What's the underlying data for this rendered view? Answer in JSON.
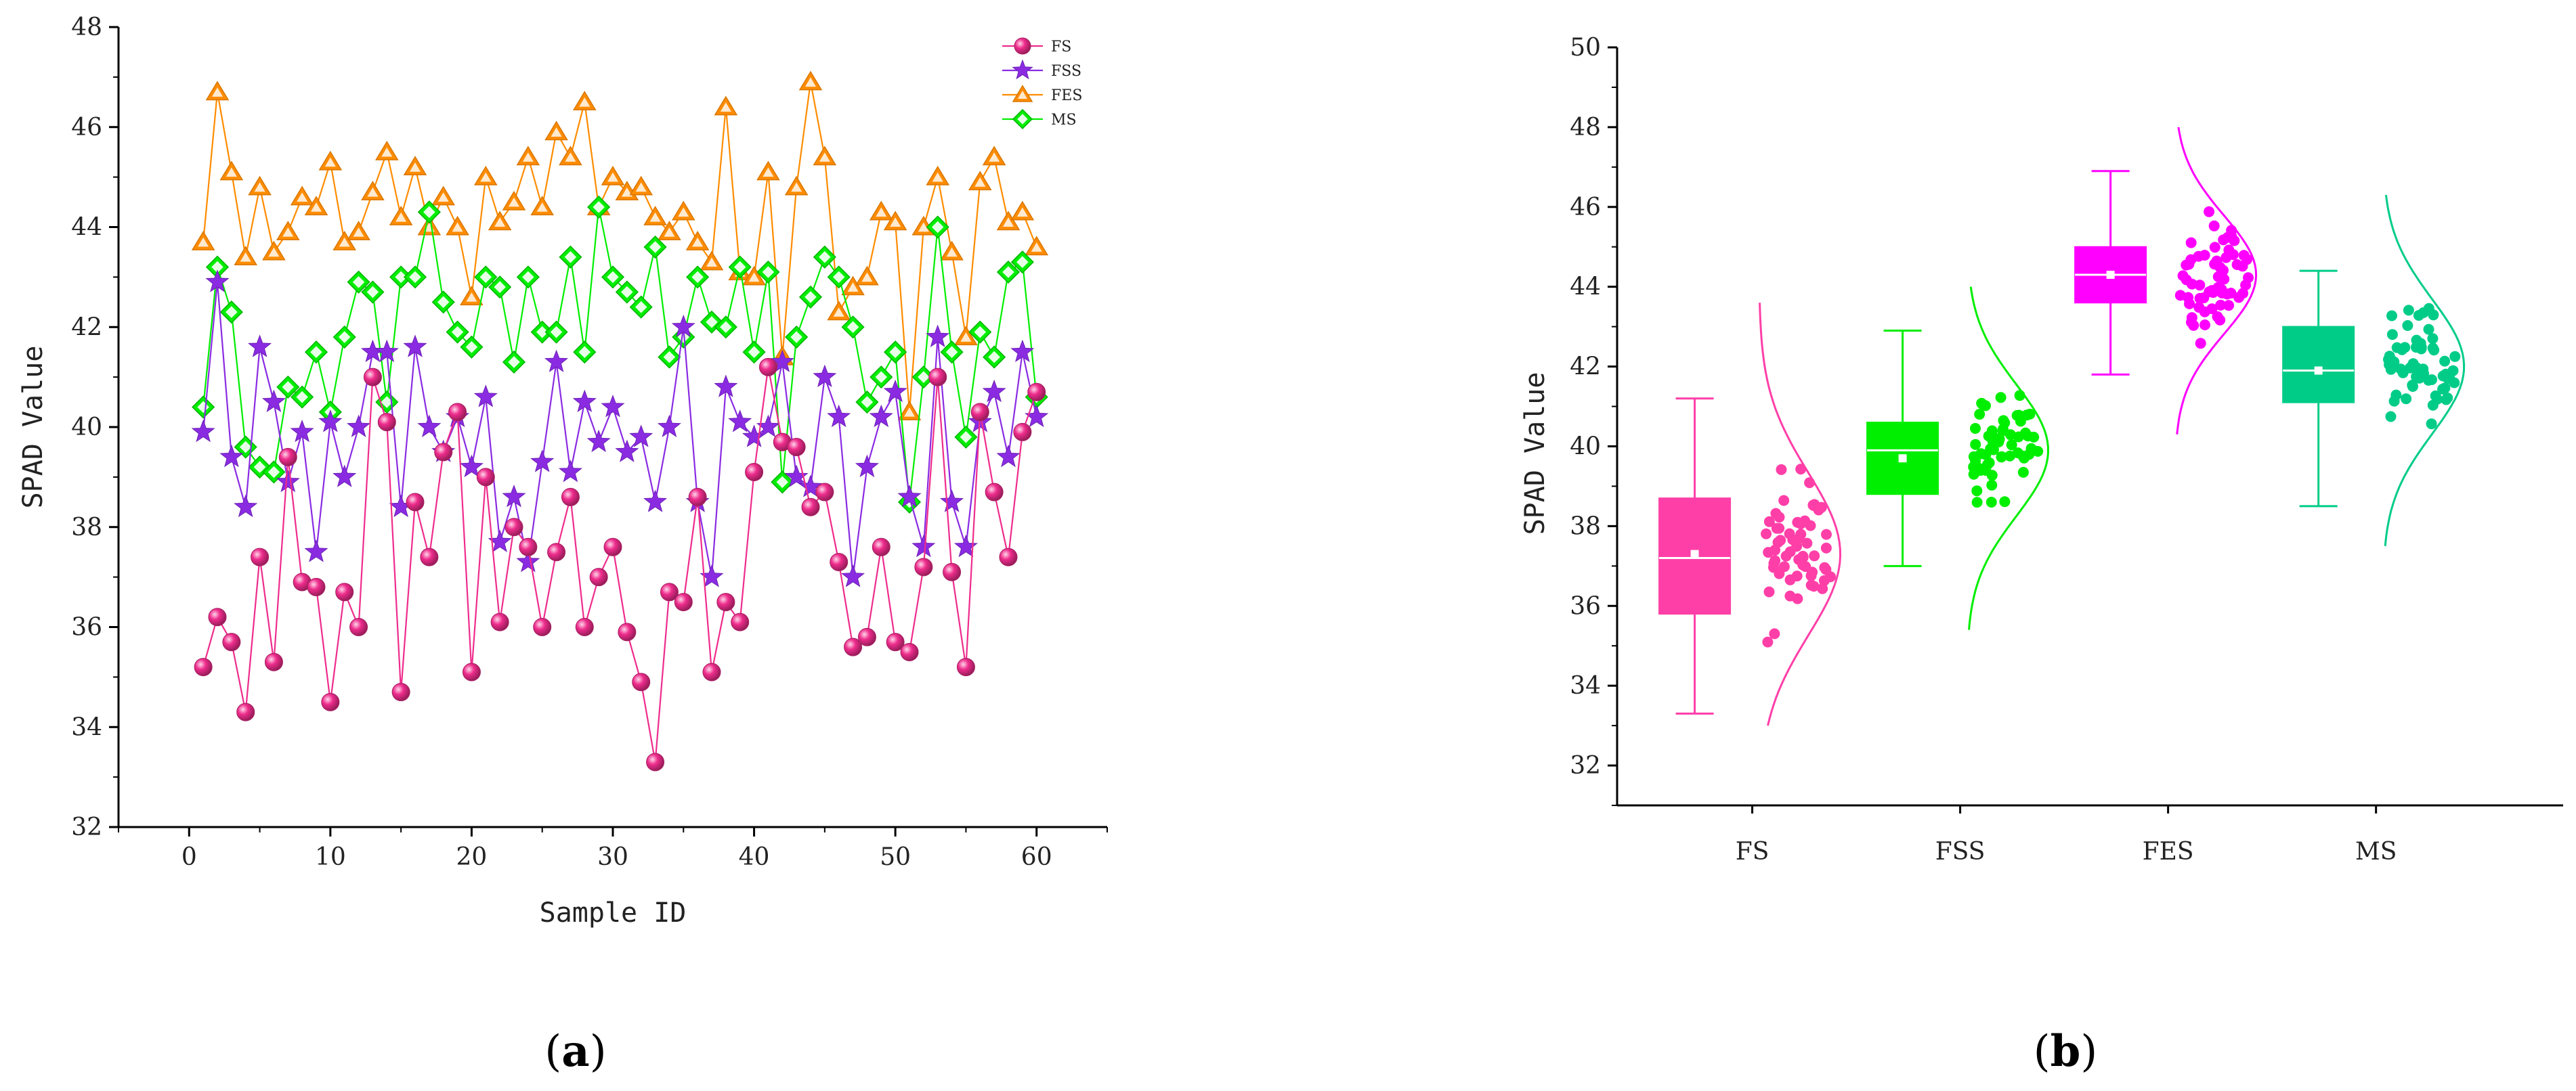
{
  "panels": {
    "a": "(a)",
    "b": "(b)"
  },
  "colors": {
    "FS": "#ee2c8c",
    "FSS": "#8a2be2",
    "FES": "#ff8c00",
    "MS": "#00ee00",
    "box_FS": "#ff3fa8",
    "box_FSS": "#00ee00",
    "box_FES": "#ff00ff",
    "box_MS": "#00cc88"
  },
  "chart_data": [
    {
      "type": "line",
      "xlabel": "Sample ID",
      "ylabel": "SPAD Value",
      "xlim": [
        -5,
        65
      ],
      "ylim": [
        32,
        48
      ],
      "xticks": [
        0,
        10,
        20,
        30,
        40,
        50,
        60
      ],
      "yticks": [
        32,
        34,
        36,
        38,
        40,
        42,
        44,
        46,
        48
      ],
      "legend_position": "top-right",
      "grid": false,
      "x": [
        1,
        2,
        3,
        4,
        5,
        6,
        7,
        8,
        9,
        10,
        11,
        12,
        13,
        14,
        15,
        16,
        17,
        18,
        19,
        20,
        21,
        22,
        23,
        24,
        25,
        26,
        27,
        28,
        29,
        30,
        31,
        32,
        33,
        34,
        35,
        36,
        37,
        38,
        39,
        40,
        41,
        42,
        43,
        44,
        45,
        46,
        47,
        48,
        49,
        50,
        51,
        52,
        53,
        54,
        55,
        56,
        57,
        58,
        59,
        60
      ],
      "series": [
        {
          "name": "FS",
          "marker": "sphere",
          "values": [
            35.2,
            36.2,
            35.7,
            34.3,
            37.4,
            35.3,
            39.4,
            36.9,
            36.8,
            34.5,
            36.7,
            36.0,
            41.0,
            40.1,
            34.7,
            38.5,
            37.4,
            39.5,
            40.3,
            35.1,
            39.0,
            36.1,
            38.0,
            37.6,
            36.0,
            37.5,
            38.6,
            36.0,
            37.0,
            37.6,
            35.9,
            34.9,
            33.3,
            36.7,
            36.5,
            38.6,
            35.1,
            36.5,
            36.1,
            39.1,
            41.2,
            39.7,
            39.6,
            38.4,
            38.7,
            37.3,
            35.6,
            35.8,
            37.6,
            35.7,
            35.5,
            37.2,
            41.0,
            37.1,
            35.2,
            40.3,
            38.7,
            37.4,
            39.9,
            40.7
          ]
        },
        {
          "name": "FSS",
          "marker": "star",
          "values": [
            39.9,
            42.9,
            39.4,
            38.4,
            41.6,
            40.5,
            38.9,
            39.9,
            37.5,
            40.1,
            39.0,
            40.0,
            41.5,
            41.5,
            38.4,
            41.6,
            40.0,
            39.5,
            40.2,
            39.2,
            40.6,
            37.7,
            38.6,
            37.3,
            39.3,
            41.3,
            39.1,
            40.5,
            39.7,
            40.4,
            39.5,
            39.8,
            38.5,
            40.0,
            42.0,
            38.5,
            37.0,
            40.8,
            40.1,
            39.8,
            40.0,
            41.3,
            39.0,
            38.8,
            41.0,
            40.2,
            37.0,
            39.2,
            40.2,
            40.7,
            38.6,
            37.6,
            41.8,
            38.5,
            37.6,
            40.1,
            40.7,
            39.4,
            41.5,
            40.2
          ]
        },
        {
          "name": "FES",
          "marker": "triangle",
          "values": [
            43.7,
            46.7,
            45.1,
            43.4,
            44.8,
            43.5,
            43.9,
            44.6,
            44.4,
            45.3,
            43.7,
            43.9,
            44.7,
            45.5,
            44.2,
            45.2,
            44.0,
            44.6,
            44.0,
            42.6,
            45.0,
            44.1,
            44.5,
            45.4,
            44.4,
            45.9,
            45.4,
            46.5,
            44.4,
            45.0,
            44.7,
            44.8,
            44.2,
            43.9,
            44.3,
            43.7,
            43.3,
            46.4,
            43.1,
            43.0,
            45.1,
            41.4,
            44.8,
            46.9,
            45.4,
            42.3,
            42.8,
            43.0,
            44.3,
            44.1,
            40.3,
            44.0,
            45.0,
            43.5,
            41.8,
            44.9,
            45.4,
            44.1,
            44.3,
            43.6
          ]
        },
        {
          "name": "MS",
          "marker": "diamond",
          "values": [
            40.4,
            43.2,
            42.3,
            39.6,
            39.2,
            39.1,
            40.8,
            40.6,
            41.5,
            40.3,
            41.8,
            42.9,
            42.7,
            40.5,
            43.0,
            43.0,
            44.3,
            42.5,
            41.9,
            41.6,
            43.0,
            42.8,
            41.3,
            43.0,
            41.9,
            41.9,
            43.4,
            41.5,
            44.4,
            43.0,
            42.7,
            42.4,
            43.6,
            41.4,
            41.8,
            43.0,
            42.1,
            42.0,
            43.2,
            41.5,
            43.1,
            38.9,
            41.8,
            42.6,
            43.4,
            43.0,
            42.0,
            40.5,
            41.0,
            41.5,
            38.5,
            41.0,
            44.0,
            41.5,
            39.8,
            41.9,
            41.4,
            43.1,
            43.3,
            40.6
          ]
        }
      ]
    },
    {
      "type": "box",
      "xlabel": "",
      "ylabel": "SPAD Value",
      "ylim": [
        31,
        50
      ],
      "yticks": [
        32,
        34,
        36,
        38,
        40,
        42,
        44,
        46,
        48,
        50
      ],
      "categories": [
        "FS",
        "FSS",
        "FES",
        "MS"
      ],
      "boxes": [
        {
          "name": "FS",
          "q1": 35.8,
          "median": 37.2,
          "q3": 38.7,
          "mean": 37.3,
          "min": 33.3,
          "max": 41.2,
          "curve_range": [
            33.0,
            43.6
          ],
          "peak": 37.3
        },
        {
          "name": "FSS",
          "q1": 38.8,
          "median": 39.9,
          "q3": 40.6,
          "mean": 39.7,
          "min": 37.0,
          "max": 42.9,
          "curve_range": [
            35.4,
            44.0
          ],
          "peak": 39.9
        },
        {
          "name": "FES",
          "q1": 43.6,
          "median": 44.3,
          "q3": 45.0,
          "mean": 44.3,
          "min": 41.8,
          "max": 46.9,
          "curve_range": [
            40.3,
            48.0
          ],
          "peak": 44.3
        },
        {
          "name": "MS",
          "q1": 41.1,
          "median": 41.9,
          "q3": 43.0,
          "mean": 41.9,
          "min": 38.5,
          "max": 44.4,
          "curve_range": [
            37.5,
            46.3
          ],
          "peak": 42.0
        }
      ]
    }
  ]
}
